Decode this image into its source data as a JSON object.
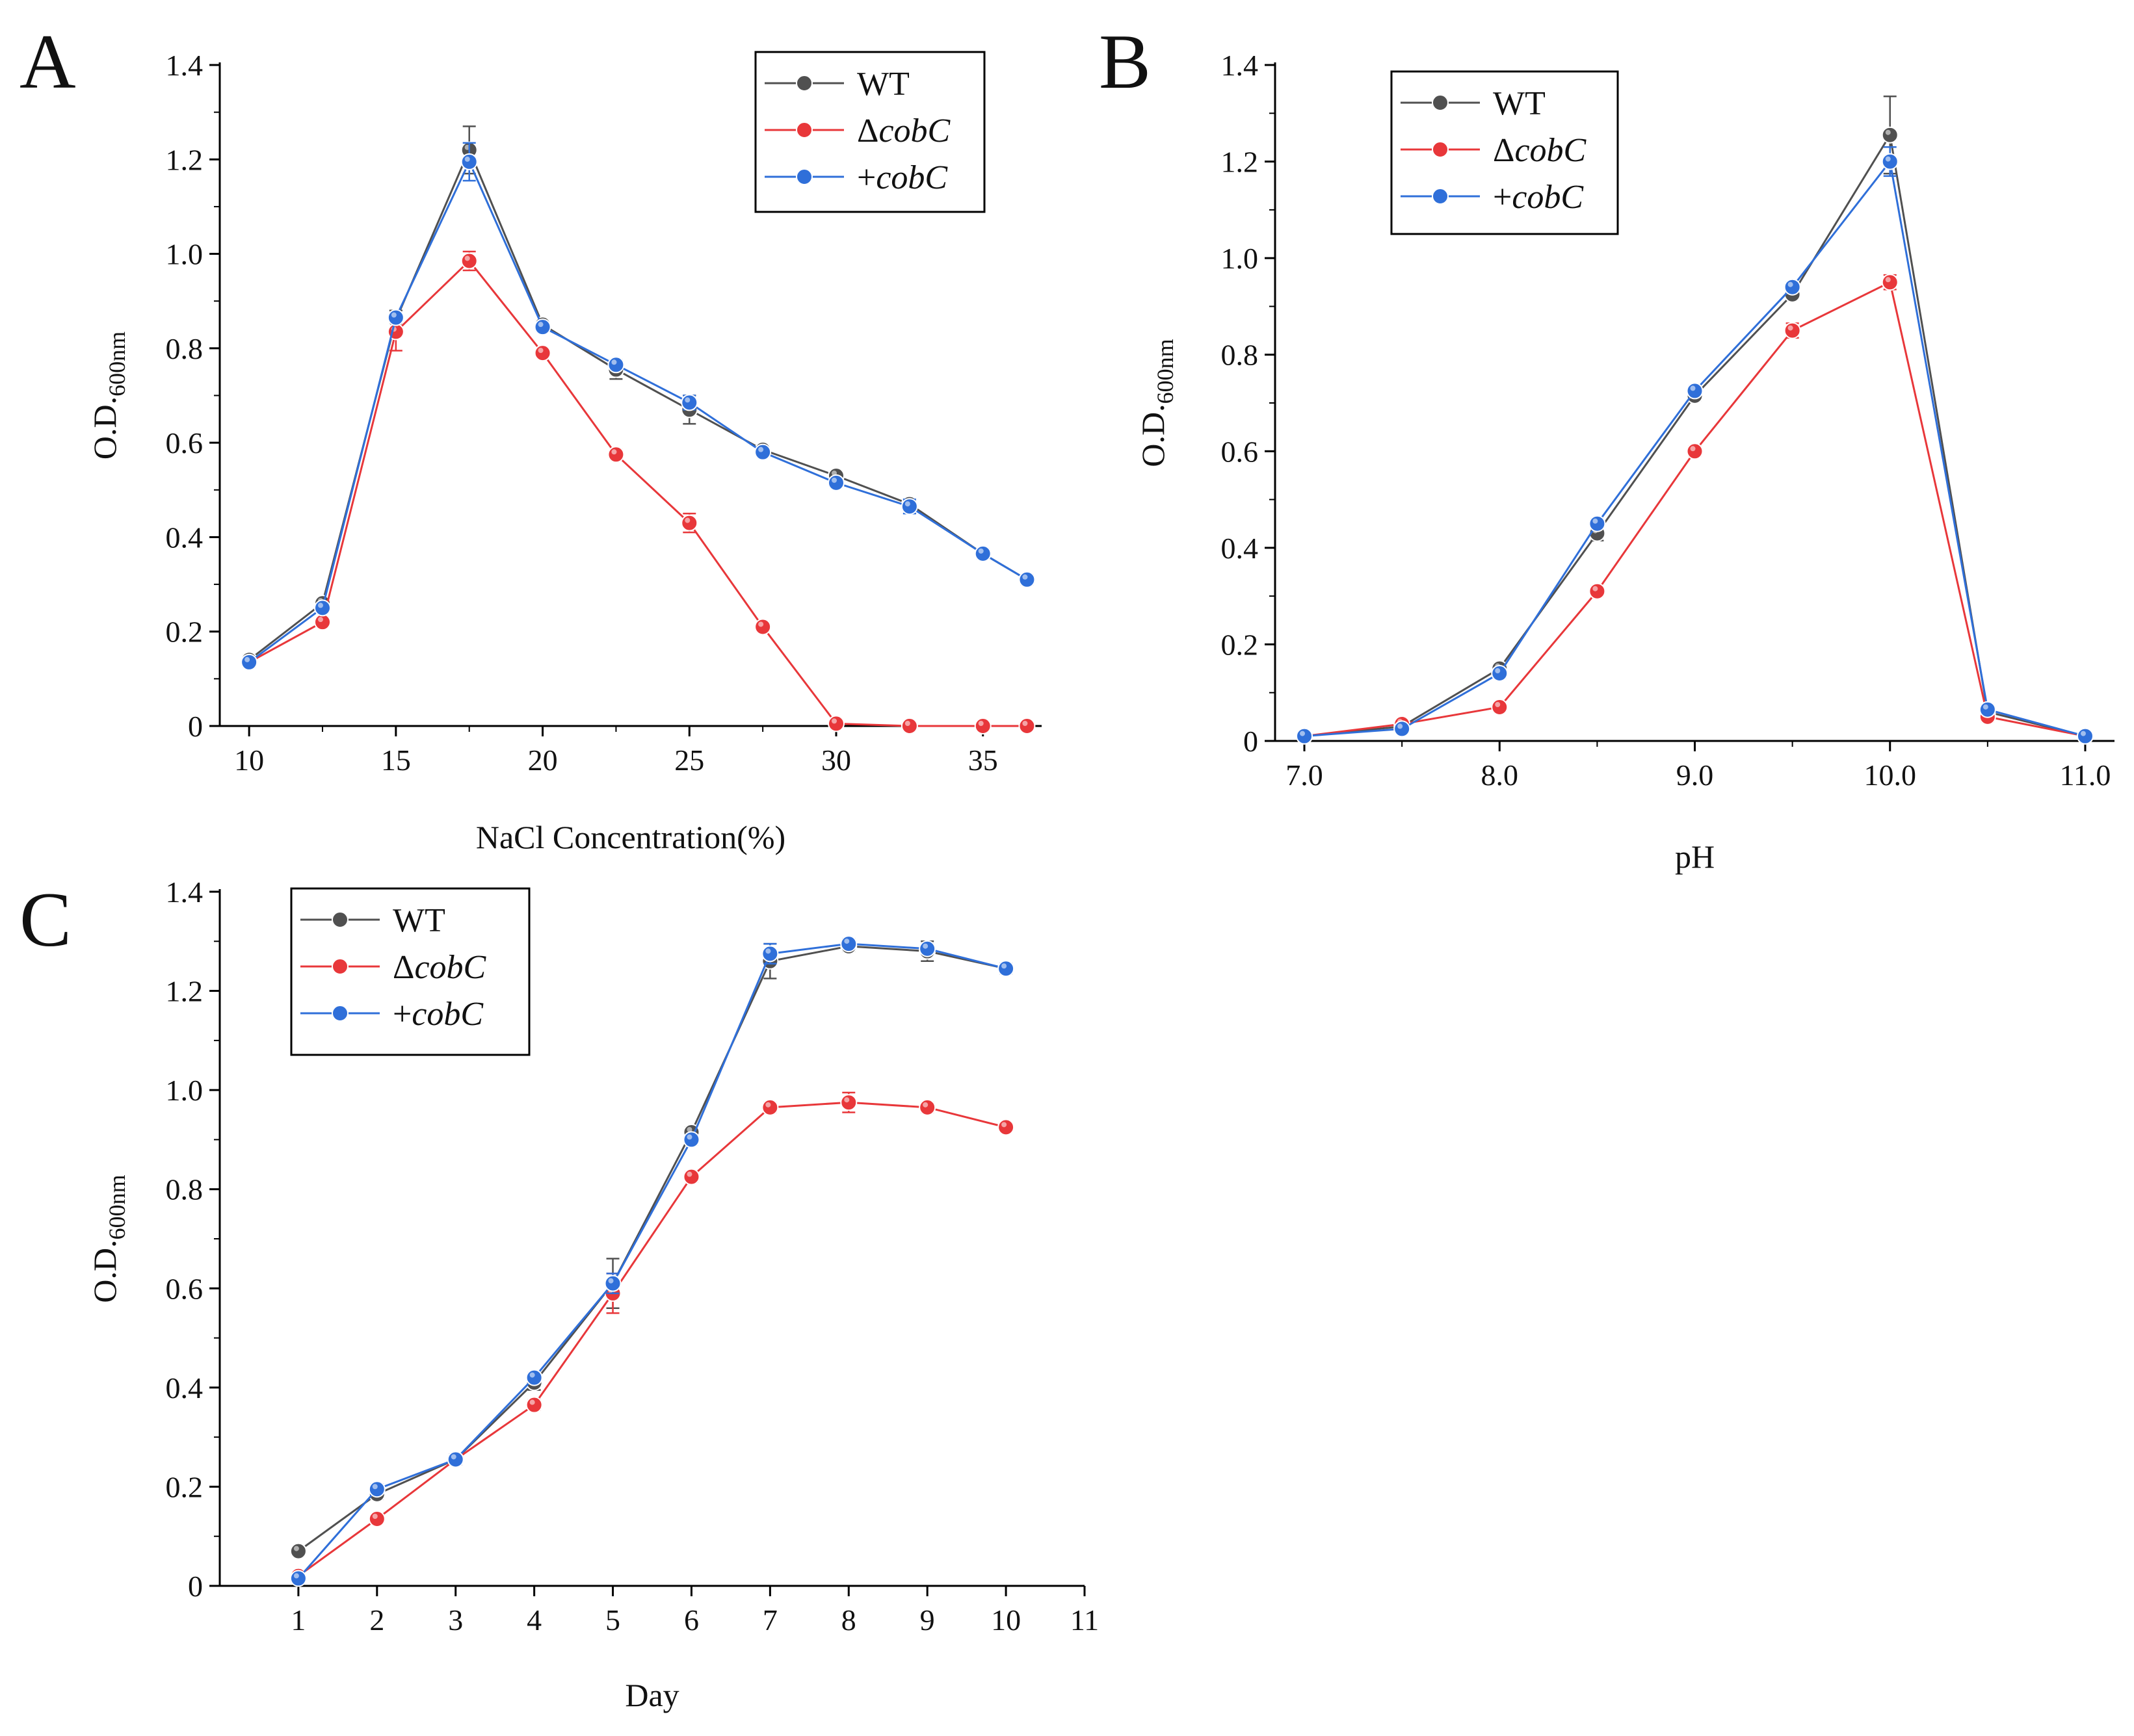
{
  "figure": {
    "colors": {
      "WT": "#505050",
      "dcobC": "#e8373a",
      "pcobC": "#2f6fd9",
      "axis": "#000000"
    }
  },
  "chart_data": [
    {
      "id": "A",
      "panel_label": "A",
      "type": "line",
      "xlabel": "NaCl Concentration(%)",
      "ylabel": "O.D.",
      "ylabel_sub": "600nm",
      "xlim": [
        9,
        37
      ],
      "ylim": [
        0,
        1.4
      ],
      "xticks": [
        10,
        15,
        20,
        25,
        30,
        35
      ],
      "xtick_labels": [
        "10",
        "15",
        "20",
        "25",
        "30",
        "35"
      ],
      "yticks": [
        0,
        0.2,
        0.4,
        0.6,
        0.8,
        1.0,
        1.2,
        1.4
      ],
      "ytick_labels": [
        "0",
        "0.2",
        "0.4",
        "0.6",
        "0.8",
        "1.0",
        "1.2",
        "1.4"
      ],
      "legend": {
        "position": "top-right"
      },
      "x": [
        10,
        12.5,
        15,
        17.5,
        20,
        22.5,
        25,
        27.5,
        30,
        32.5,
        35,
        36.5
      ],
      "series": [
        {
          "key": "WT",
          "name": "WT",
          "italic": false,
          "color": "#505050",
          "values": [
            0.14,
            0.26,
            0.86,
            1.22,
            0.85,
            0.755,
            0.67,
            0.585,
            0.53,
            0.47,
            0.365,
            0.31
          ],
          "errors": [
            0.01,
            0.01,
            0.02,
            0.05,
            0.01,
            0.02,
            0.03,
            0.01,
            0.01,
            0.01,
            0.01,
            0.01
          ]
        },
        {
          "key": "dcobC",
          "name": "ΔcobC",
          "prefix": "Δ",
          "italic_part": "cobC",
          "color": "#e8373a",
          "values": [
            0.135,
            0.22,
            0.835,
            0.985,
            0.79,
            0.575,
            0.43,
            0.21,
            0.005,
            0.0,
            0.0,
            0.0
          ],
          "errors": [
            0.01,
            0.01,
            0.04,
            0.02,
            0.01,
            0.01,
            0.02,
            0.01,
            0.005,
            0.0,
            0.0,
            0.0
          ]
        },
        {
          "key": "pcobC",
          "name": "+cobC",
          "prefix": "+",
          "italic_part": "cobC",
          "color": "#2f6fd9",
          "values": [
            0.135,
            0.25,
            0.865,
            1.195,
            0.845,
            0.765,
            0.685,
            0.58,
            0.515,
            0.465,
            0.365,
            0.31
          ],
          "errors": [
            0.01,
            0.01,
            0.01,
            0.04,
            0.01,
            0.01,
            0.015,
            0.01,
            0.01,
            0.015,
            0.01,
            0.01
          ]
        }
      ]
    },
    {
      "id": "B",
      "panel_label": "B",
      "type": "line",
      "xlabel": "pH",
      "ylabel": "O.D.",
      "ylabel_sub": "600nm",
      "xlim": [
        6.85,
        11.15
      ],
      "ylim": [
        0,
        1.4
      ],
      "xticks": [
        7.0,
        8.0,
        9.0,
        10.0,
        11.0
      ],
      "xtick_labels": [
        "7.0",
        "8.0",
        "9.0",
        "10.0",
        "11.0"
      ],
      "yticks": [
        0,
        0.2,
        0.4,
        0.6,
        0.8,
        1.0,
        1.2,
        1.4
      ],
      "ytick_labels": [
        "0",
        "0.2",
        "0.4",
        "0.6",
        "0.8",
        "1.0",
        "1.2",
        "1.4"
      ],
      "legend": {
        "position": "top-left"
      },
      "x": [
        7.0,
        7.5,
        8.0,
        8.5,
        9.0,
        9.5,
        10.0,
        10.5,
        11.0
      ],
      "series": [
        {
          "key": "WT",
          "name": "WT",
          "italic": false,
          "color": "#505050",
          "values": [
            0.01,
            0.03,
            0.15,
            0.43,
            0.715,
            0.925,
            1.255,
            0.06,
            0.01
          ],
          "errors": [
            0.005,
            0.005,
            0.01,
            0.015,
            0.01,
            0.01,
            0.08,
            0.01,
            0.005
          ]
        },
        {
          "key": "dcobC",
          "name": "ΔcobC",
          "prefix": "Δ",
          "italic_part": "cobC",
          "color": "#e8373a",
          "values": [
            0.01,
            0.035,
            0.07,
            0.31,
            0.6,
            0.85,
            0.95,
            0.05,
            0.01
          ],
          "errors": [
            0.005,
            0.005,
            0.005,
            0.01,
            0.01,
            0.015,
            0.015,
            0.01,
            0.005
          ]
        },
        {
          "key": "pcobC",
          "name": "+cobC",
          "prefix": "+",
          "italic_part": "cobC",
          "color": "#2f6fd9",
          "values": [
            0.01,
            0.025,
            0.14,
            0.45,
            0.725,
            0.94,
            1.2,
            0.065,
            0.01
          ],
          "errors": [
            0.005,
            0.005,
            0.01,
            0.01,
            0.01,
            0.01,
            0.03,
            0.01,
            0.005
          ]
        }
      ]
    },
    {
      "id": "C",
      "panel_label": "C",
      "type": "line",
      "xlabel": "Day",
      "ylabel": "O.D.",
      "ylabel_sub": "600nm",
      "xlim": [
        0,
        11
      ],
      "ylim": [
        0,
        1.4
      ],
      "xticks": [
        1,
        2,
        3,
        4,
        5,
        6,
        7,
        8,
        9,
        10,
        11
      ],
      "xtick_labels": [
        "1",
        "2",
        "3",
        "4",
        "5",
        "6",
        "7",
        "8",
        "9",
        "10",
        "11"
      ],
      "yticks": [
        0,
        0.2,
        0.4,
        0.6,
        0.8,
        1.0,
        1.2,
        1.4
      ],
      "ytick_labels": [
        "0",
        "0.2",
        "0.4",
        "0.6",
        "0.8",
        "1.0",
        "1.2",
        "1.4"
      ],
      "legend": {
        "position": "top-left"
      },
      "x": [
        1,
        2,
        3,
        4,
        5,
        6,
        7,
        8,
        9,
        10
      ],
      "series": [
        {
          "key": "WT",
          "name": "WT",
          "italic": false,
          "color": "#505050",
          "values": [
            0.07,
            0.185,
            0.255,
            0.41,
            0.61,
            0.915,
            1.26,
            1.29,
            1.28,
            1.245
          ],
          "errors": [
            0.005,
            0.01,
            0.01,
            0.015,
            0.05,
            0.01,
            0.035,
            0.01,
            0.02,
            0.01
          ]
        },
        {
          "key": "dcobC",
          "name": "ΔcobC",
          "prefix": "Δ",
          "italic_part": "cobC",
          "color": "#e8373a",
          "values": [
            0.02,
            0.135,
            0.255,
            0.365,
            0.59,
            0.825,
            0.965,
            0.975,
            0.965,
            0.925
          ],
          "errors": [
            0.005,
            0.005,
            0.01,
            0.01,
            0.04,
            0.01,
            0.01,
            0.02,
            0.01,
            0.005
          ]
        },
        {
          "key": "pcobC",
          "name": "+cobC",
          "prefix": "+",
          "italic_part": "cobC",
          "color": "#2f6fd9",
          "values": [
            0.015,
            0.195,
            0.255,
            0.42,
            0.61,
            0.9,
            1.275,
            1.295,
            1.285,
            1.245
          ],
          "errors": [
            0.005,
            0.01,
            0.01,
            0.01,
            0.02,
            0.01,
            0.02,
            0.01,
            0.01,
            0.01
          ]
        }
      ]
    }
  ]
}
